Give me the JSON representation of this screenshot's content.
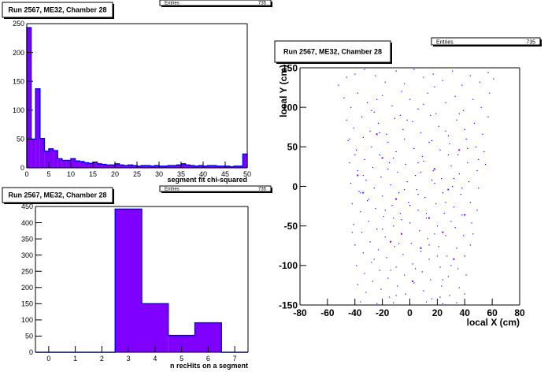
{
  "colors": {
    "fill": "#8000ff",
    "line": "#0000ff",
    "axis": "#000000",
    "box": "#000000"
  },
  "chart_data": [
    {
      "id": "chi2",
      "type": "bar",
      "title": "Run 2567, ME32, Chamber 28",
      "stats": {
        "label": "Entries",
        "value": "735"
      },
      "xlabel": "segment fit chi-squared",
      "ylabel": "",
      "xlim": [
        0,
        50
      ],
      "ylim": [
        0,
        250
      ],
      "xticks": [
        0,
        5,
        10,
        15,
        20,
        25,
        30,
        35,
        40,
        45,
        50
      ],
      "yticks": [
        0,
        50,
        100,
        150,
        200,
        250
      ],
      "bins": {
        "start": 0,
        "width": 1,
        "values": [
          243,
          50,
          137,
          51,
          29,
          33,
          30,
          16,
          13,
          13,
          16,
          12,
          11,
          9,
          8,
          10,
          7,
          6,
          5,
          5,
          7,
          5,
          4,
          5,
          4,
          3,
          4,
          4,
          3,
          4,
          3,
          3,
          4,
          4,
          5,
          7,
          5,
          4,
          3,
          4,
          3,
          4,
          4,
          3,
          3,
          3,
          2,
          3,
          3,
          24
        ]
      }
    },
    {
      "id": "nhits",
      "type": "bar",
      "title": "Run 2567, ME32, Chamber 28",
      "stats": {
        "label": "Entries",
        "value": "735"
      },
      "xlabel": "n recHits on a segment",
      "ylabel": "",
      "xlim": [
        -0.5,
        7.5
      ],
      "ylim": [
        0,
        450
      ],
      "xticks": [
        0,
        1,
        2,
        3,
        4,
        5,
        6,
        7
      ],
      "yticks": [
        0,
        50,
        100,
        150,
        200,
        250,
        300,
        350,
        400,
        450
      ],
      "bins": {
        "start": -0.5,
        "width": 1,
        "values": [
          0,
          0,
          0,
          442,
          150,
          52,
          91,
          0
        ]
      }
    },
    {
      "id": "xy",
      "type": "scatter",
      "title": "Run 2567, ME32, Chamber 28",
      "stats": {
        "label": "Entries",
        "value": "735"
      },
      "xlabel": "local X (cm)",
      "ylabel": "local Y (cm)",
      "xlim": [
        -80,
        80
      ],
      "ylim": [
        -150,
        150
      ],
      "xticks": [
        -80,
        -60,
        -40,
        -20,
        0,
        20,
        40,
        60,
        80
      ],
      "yticks": [
        -150,
        -100,
        -50,
        0,
        50,
        100,
        150
      ],
      "points": [
        [
          -52,
          128
        ],
        [
          -46,
          138
        ],
        [
          -40,
          142
        ],
        [
          -33,
          148
        ],
        [
          -25,
          140
        ],
        [
          -18,
          132
        ],
        [
          -10,
          146
        ],
        [
          -4,
          130
        ],
        [
          3,
          148
        ],
        [
          10,
          138
        ],
        [
          17,
          142
        ],
        [
          24,
          134
        ],
        [
          31,
          146
        ],
        [
          38,
          128
        ],
        [
          44,
          140
        ],
        [
          51,
          132
        ],
        [
          57,
          144
        ],
        [
          61,
          136
        ],
        [
          -48,
          112
        ],
        [
          -43,
          100
        ],
        [
          -38,
          118
        ],
        [
          -31,
          106
        ],
        [
          -26,
          94
        ],
        [
          -20,
          115
        ],
        [
          -13,
          102
        ],
        [
          -7,
          90
        ],
        [
          0,
          110
        ],
        [
          6,
          98
        ],
        [
          13,
          118
        ],
        [
          19,
          92
        ],
        [
          26,
          106
        ],
        [
          33,
          114
        ],
        [
          39,
          96
        ],
        [
          46,
          110
        ],
        [
          52,
          100
        ],
        [
          58,
          118
        ],
        [
          -46,
          84
        ],
        [
          -41,
          74
        ],
        [
          -35,
          88
        ],
        [
          -29,
          70
        ],
        [
          -23,
          80
        ],
        [
          -17,
          66
        ],
        [
          -11,
          86
        ],
        [
          -5,
          72
        ],
        [
          2,
          82
        ],
        [
          8,
          68
        ],
        [
          15,
          90
        ],
        [
          21,
          76
        ],
        [
          28,
          64
        ],
        [
          34,
          84
        ],
        [
          40,
          72
        ],
        [
          47,
          80
        ],
        [
          53,
          66
        ],
        [
          57,
          88
        ],
        [
          -45,
          58
        ],
        [
          -39,
          46
        ],
        [
          -34,
          62
        ],
        [
          -28,
          50
        ],
        [
          -22,
          40
        ],
        [
          -16,
          56
        ],
        [
          -10,
          44
        ],
        [
          -4,
          60
        ],
        [
          3,
          48
        ],
        [
          9,
          38
        ],
        [
          16,
          58
        ],
        [
          22,
          46
        ],
        [
          29,
          54
        ],
        [
          35,
          40
        ],
        [
          41,
          60
        ],
        [
          48,
          50
        ],
        [
          54,
          44
        ],
        [
          -44,
          30
        ],
        [
          -38,
          20
        ],
        [
          -33,
          34
        ],
        [
          -27,
          24
        ],
        [
          -21,
          12
        ],
        [
          -15,
          30
        ],
        [
          -9,
          18
        ],
        [
          -3,
          28
        ],
        [
          4,
          14
        ],
        [
          10,
          32
        ],
        [
          17,
          20
        ],
        [
          23,
          10
        ],
        [
          30,
          26
        ],
        [
          36,
          16
        ],
        [
          42,
          30
        ],
        [
          49,
          20
        ],
        [
          55,
          28
        ],
        [
          -43,
          4
        ],
        [
          -37,
          -6
        ],
        [
          -32,
          8
        ],
        [
          -26,
          -2
        ],
        [
          -20,
          -12
        ],
        [
          -14,
          2
        ],
        [
          -8,
          -8
        ],
        [
          -2,
          6
        ],
        [
          5,
          -4
        ],
        [
          11,
          -14
        ],
        [
          18,
          4
        ],
        [
          24,
          -8
        ],
        [
          31,
          0
        ],
        [
          37,
          -10
        ],
        [
          43,
          6
        ],
        [
          50,
          -2
        ],
        [
          -42,
          -22
        ],
        [
          -36,
          -32
        ],
        [
          -31,
          -18
        ],
        [
          -25,
          -28
        ],
        [
          -19,
          -38
        ],
        [
          -13,
          -24
        ],
        [
          -7,
          -34
        ],
        [
          -1,
          -20
        ],
        [
          6,
          -30
        ],
        [
          12,
          -40
        ],
        [
          19,
          -22
        ],
        [
          25,
          -34
        ],
        [
          32,
          -26
        ],
        [
          38,
          -36
        ],
        [
          44,
          -20
        ],
        [
          49,
          -30
        ],
        [
          -41,
          -48
        ],
        [
          -35,
          -58
        ],
        [
          -30,
          -44
        ],
        [
          -24,
          -54
        ],
        [
          -18,
          -64
        ],
        [
          -12,
          -50
        ],
        [
          -6,
          -60
        ],
        [
          0,
          -46
        ],
        [
          7,
          -56
        ],
        [
          13,
          -66
        ],
        [
          20,
          -50
        ],
        [
          26,
          -62
        ],
        [
          33,
          -52
        ],
        [
          39,
          -62
        ],
        [
          45,
          -46
        ],
        [
          -40,
          -74
        ],
        [
          -34,
          -84
        ],
        [
          -29,
          -70
        ],
        [
          -23,
          -80
        ],
        [
          -17,
          -90
        ],
        [
          -11,
          -76
        ],
        [
          -5,
          -86
        ],
        [
          1,
          -72
        ],
        [
          8,
          -82
        ],
        [
          14,
          -92
        ],
        [
          21,
          -76
        ],
        [
          27,
          -88
        ],
        [
          34,
          -78
        ],
        [
          40,
          -88
        ],
        [
          44,
          -74
        ],
        [
          -39,
          -100
        ],
        [
          -33,
          -110
        ],
        [
          -28,
          -96
        ],
        [
          -22,
          -106
        ],
        [
          -16,
          -116
        ],
        [
          -10,
          -102
        ],
        [
          -4,
          -112
        ],
        [
          2,
          -98
        ],
        [
          9,
          -108
        ],
        [
          15,
          -118
        ],
        [
          22,
          -102
        ],
        [
          28,
          -114
        ],
        [
          35,
          -104
        ],
        [
          41,
          -112
        ],
        [
          -38,
          -124
        ],
        [
          -32,
          -134
        ],
        [
          -27,
          -120
        ],
        [
          -21,
          -130
        ],
        [
          -15,
          -140
        ],
        [
          -9,
          -126
        ],
        [
          -3,
          -136
        ],
        [
          3,
          -122
        ],
        [
          10,
          -132
        ],
        [
          16,
          -142
        ],
        [
          23,
          -126
        ],
        [
          29,
          -138
        ],
        [
          36,
          -128
        ],
        [
          40,
          -136
        ],
        [
          -36,
          -146
        ],
        [
          -24,
          -148
        ],
        [
          -12,
          -147
        ],
        [
          0,
          -149
        ],
        [
          12,
          -146
        ],
        [
          24,
          -148
        ],
        [
          34,
          -147
        ],
        [
          -30,
          -16
        ],
        [
          -18,
          -30
        ],
        [
          -6,
          -42
        ],
        [
          6,
          -10
        ],
        [
          18,
          -60
        ],
        [
          30,
          -44
        ],
        [
          8,
          18
        ],
        [
          -12,
          36
        ],
        [
          26,
          -20
        ],
        [
          -22,
          68
        ],
        [
          14,
          56
        ],
        [
          -8,
          -72
        ],
        [
          20,
          -88
        ],
        [
          -26,
          -92
        ],
        [
          4,
          -104
        ],
        [
          32,
          10
        ],
        [
          -40,
          40
        ],
        [
          46,
          -60
        ],
        [
          -36,
          -8
        ],
        [
          -16,
          22
        ],
        [
          0,
          -24
        ],
        [
          16,
          8
        ],
        [
          28,
          40
        ],
        [
          -28,
          96
        ],
        [
          10,
          104
        ],
        [
          -14,
          -106
        ],
        [
          24,
          -118
        ],
        [
          -6,
          120
        ],
        [
          36,
          92
        ],
        [
          -44,
          60
        ],
        [
          50,
          34
        ],
        [
          -2,
          84
        ],
        [
          12,
          -34
        ],
        [
          -20,
          -54
        ],
        [
          38,
          -2
        ],
        [
          -34,
          14
        ],
        [
          -12,
          -40
        ],
        [
          14,
          -74
        ],
        [
          26,
          70
        ],
        [
          -24,
          110
        ],
        [
          6,
          30
        ],
        [
          -10,
          -138
        ],
        [
          22,
          -140
        ],
        [
          42,
          48
        ],
        [
          -42,
          -58
        ],
        [
          30,
          -100
        ],
        [
          -4,
          -4
        ],
        [
          18,
          126
        ]
      ],
      "bold_points": [
        [
          -38,
          14
        ],
        [
          -34,
          -8
        ],
        [
          -10,
          -16
        ],
        [
          8,
          -78
        ],
        [
          24,
          -58
        ],
        [
          36,
          46
        ],
        [
          -24,
          66
        ],
        [
          14,
          -40
        ],
        [
          2,
          -120
        ],
        [
          32,
          -92
        ],
        [
          -20,
          36
        ],
        [
          18,
          22
        ],
        [
          28,
          -4
        ],
        [
          -6,
          -60
        ],
        [
          -14,
          -70
        ],
        [
          40,
          -36
        ]
      ]
    }
  ]
}
